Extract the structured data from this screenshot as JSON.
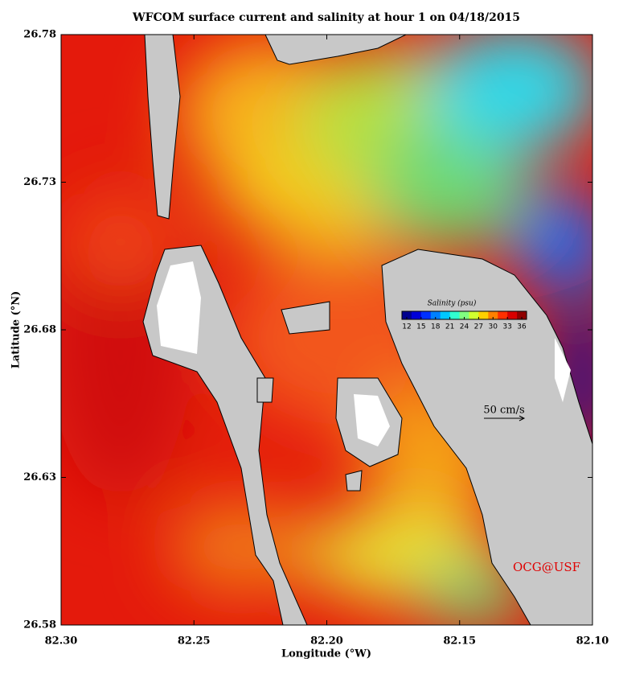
{
  "chart_data": {
    "type": "map",
    "title": "WFCOM surface current and salinity at hour 1 on 04/18/2015",
    "x_label": "Longitude (°W)",
    "y_label": "Latitude (°N)",
    "xlim": [
      82.3,
      82.1
    ],
    "ylim": [
      26.58,
      26.78
    ],
    "xticks": [
      {
        "value": 82.3,
        "label": "82.30"
      },
      82.25,
      {
        "value": 82.2,
        "label": "82.20"
      },
      82.15,
      {
        "value": 82.1,
        "label": "82.10"
      }
    ],
    "yticks": [
      {
        "value": 26.58,
        "label": "26.58"
      },
      {
        "value": 26.63,
        "label": "26.63"
      },
      {
        "value": 26.68,
        "label": "26.68"
      },
      {
        "value": 26.73,
        "label": "26.73"
      },
      {
        "value": 26.78,
        "label": "26.78"
      }
    ],
    "colorbar": {
      "label": "Salinity (psu)",
      "lim": [
        11,
        37
      ],
      "ticks": [
        12,
        15,
        18,
        21,
        24,
        27,
        30,
        33,
        36
      ],
      "colors": [
        "#00008f",
        "#0000d8",
        "#0030ff",
        "#0080ff",
        "#00c8ff",
        "#30ffd0",
        "#80ff80",
        "#d0ff30",
        "#ffd000",
        "#ff8000",
        "#ff3000",
        "#d80000",
        "#8f0000"
      ]
    },
    "scale_label": "50 cm/s",
    "annotation": "OCG@USF"
  }
}
